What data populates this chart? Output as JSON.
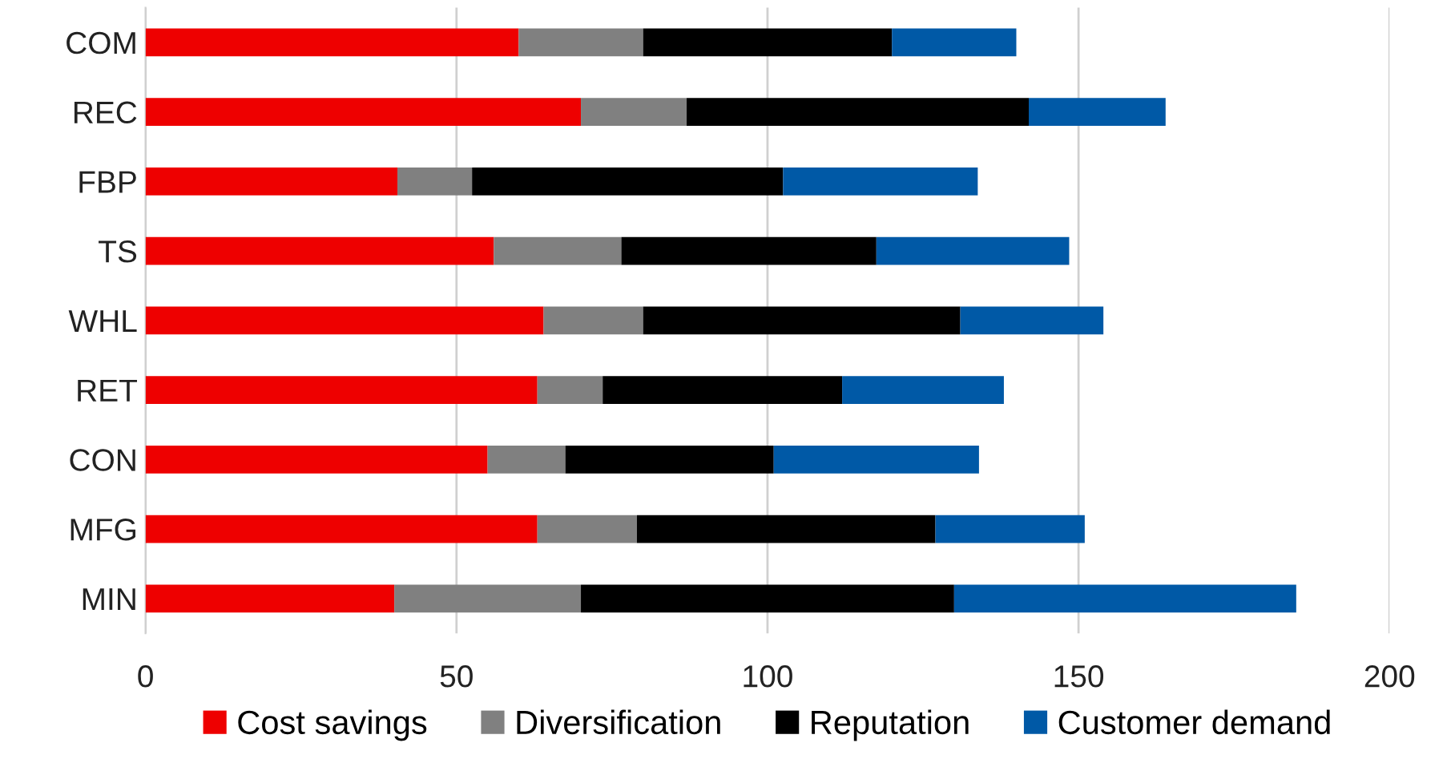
{
  "chart_data": {
    "type": "bar",
    "orientation": "horizontal",
    "stacked": true,
    "categories": [
      "COM",
      "REC",
      "FBP",
      "TS",
      "WHL",
      "RET",
      "CON",
      "MFG",
      "MIN"
    ],
    "series": [
      {
        "name": "Cost savings",
        "color": "#ee0000",
        "values": [
          60,
          70,
          40.5,
          56,
          64,
          63,
          55,
          63,
          40
        ]
      },
      {
        "name": "Diversification",
        "color": "#808080",
        "values": [
          20,
          17,
          12,
          20.5,
          16,
          10.5,
          12.5,
          16,
          30
        ]
      },
      {
        "name": "Reputation",
        "color": "#000000",
        "values": [
          40,
          55,
          50,
          41,
          51,
          38.5,
          33.5,
          48,
          60
        ]
      },
      {
        "name": "Customer demand",
        "color": "#0059a6",
        "values": [
          20,
          22,
          31.3,
          31,
          23,
          26,
          33,
          24,
          55
        ]
      }
    ],
    "xlim": [
      0,
      200
    ],
    "xticks": [
      0,
      50,
      100,
      150,
      200
    ],
    "grid": "x",
    "legend": "bottom"
  }
}
